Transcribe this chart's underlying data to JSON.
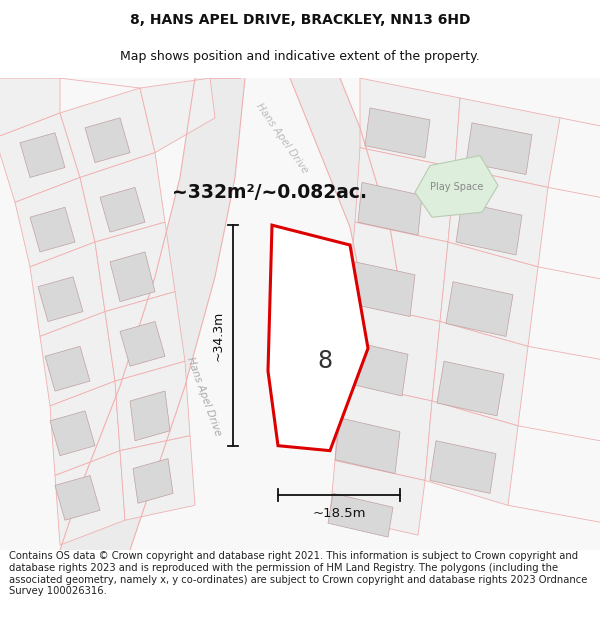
{
  "title_line1": "8, HANS APEL DRIVE, BRACKLEY, NN13 6HD",
  "title_line2": "Map shows position and indicative extent of the property.",
  "area_text": "~332m²/~0.082ac.",
  "label_number": "8",
  "label_width": "~18.5m",
  "label_height": "~34.3m",
  "road_label_lower": "Hans Apel Drive",
  "road_label_upper": "Hans Apel Drive",
  "play_space_label": "Play Space",
  "footer_text": "Contains OS data © Crown copyright and database right 2021. This information is subject to Crown copyright and database rights 2023 and is reproduced with the permission of HM Land Registry. The polygons (including the associated geometry, namely x, y co-ordinates) are subject to Crown copyright and database rights 2023 Ordnance Survey 100026316.",
  "bg_color": "#ffffff",
  "map_bg": "#f7f7f7",
  "plot_outline_color": "#dd0000",
  "plot_fill": "#ffffff",
  "building_fill": "#d8d8d8",
  "building_outline": "#c0a0a0",
  "parcel_line_color": "#f0b0b0",
  "road_fill": "#ebebeb",
  "play_space_fill": "#ddeedd",
  "play_space_outline": "#b8ccb0",
  "title_fontsize": 10,
  "subtitle_fontsize": 9,
  "footer_fontsize": 7.2
}
